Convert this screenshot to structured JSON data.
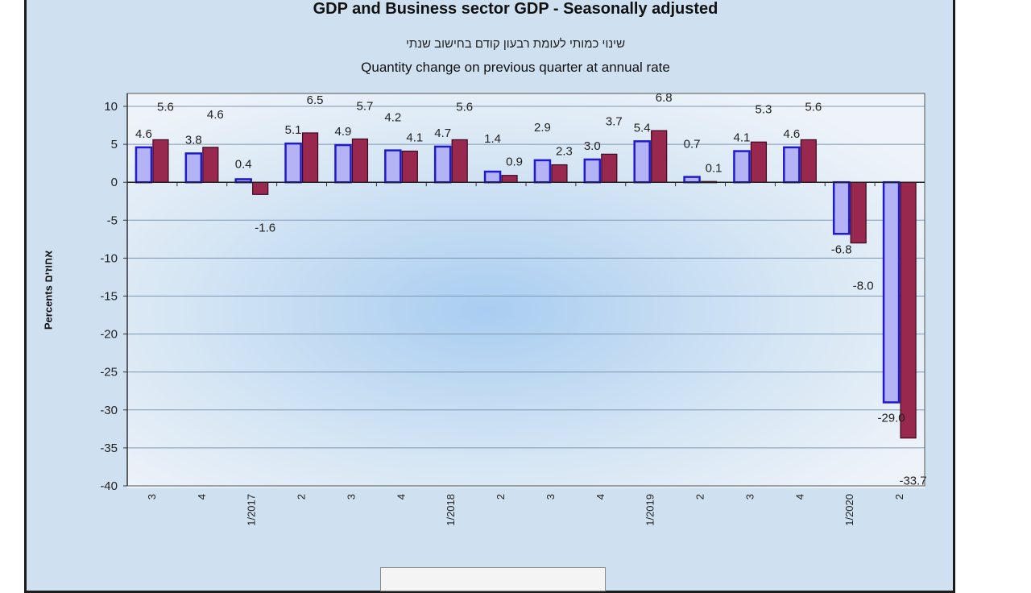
{
  "chart_data": {
    "type": "bar",
    "title": "GDP and Business sector GDP - Seasonally adjusted",
    "subtitle_hebrew": "שינוי כמותי לעומת רבעון קודם בחישוב שנתי",
    "subtitle": "Quantity change on previous quarter at annual rate",
    "ylabel": "Percents אחוזים",
    "xlabel": "",
    "ylim": [
      -40,
      10
    ],
    "yticks": [
      10,
      5,
      0,
      -5,
      -10,
      -15,
      -20,
      -25,
      -30,
      -35,
      -40
    ],
    "categories": [
      "3",
      "4",
      "1/2017",
      "2",
      "3",
      "4",
      "1/2018",
      "2",
      "3",
      "4",
      "1/2019",
      "2",
      "3",
      "4",
      "1/2020",
      "2"
    ],
    "series": [
      {
        "name": "GDP",
        "color": "#b3b3f5",
        "values": [
          4.6,
          3.8,
          0.4,
          5.1,
          4.9,
          4.2,
          4.7,
          1.4,
          2.9,
          3.0,
          5.4,
          0.7,
          4.1,
          4.6,
          -6.8,
          -29.0
        ]
      },
      {
        "name": "Business sector GDP",
        "color": "#98284e",
        "values": [
          5.6,
          4.6,
          -1.6,
          6.5,
          5.7,
          4.1,
          5.6,
          0.9,
          2.3,
          3.7,
          6.8,
          0.1,
          5.3,
          5.6,
          -8.0,
          -33.7
        ]
      }
    ],
    "grid": true
  }
}
